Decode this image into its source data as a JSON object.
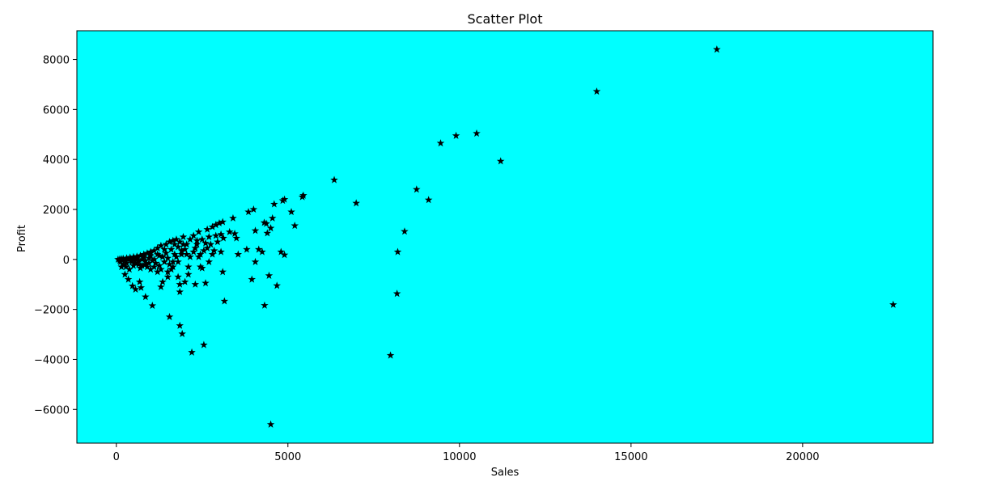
{
  "chart_data": {
    "type": "scatter",
    "title": "Scatter Plot",
    "xlabel": "Sales",
    "ylabel": "Profit",
    "xlim": [
      -1150,
      23800
    ],
    "ylim": [
      -7350,
      9150
    ],
    "xticks": [
      0,
      5000,
      10000,
      15000,
      20000
    ],
    "xtick_labels": [
      "0",
      "5000",
      "10000",
      "15000",
      "20000"
    ],
    "yticks": [
      -6000,
      -4000,
      -2000,
      0,
      2000,
      4000,
      6000,
      8000
    ],
    "ytick_labels": [
      "−6000",
      "−4000",
      "−2000",
      "0",
      "2000",
      "4000",
      "6000",
      "8000"
    ],
    "grid": false,
    "marker": "star",
    "colors": {
      "plot_background": "#00ffff",
      "marker": "#000000",
      "axes": "#000000"
    },
    "series": [
      {
        "points": [
          [
            17500,
            8400
          ],
          [
            14000,
            6720
          ],
          [
            10500,
            5040
          ],
          [
            9900,
            4950
          ],
          [
            9450,
            4650
          ],
          [
            11200,
            3930
          ],
          [
            6350,
            3180
          ],
          [
            6990,
            2250
          ],
          [
            8750,
            2800
          ],
          [
            9100,
            2380
          ],
          [
            8400,
            1120
          ],
          [
            8200,
            300
          ],
          [
            8180,
            -1370
          ],
          [
            7990,
            -3840
          ],
          [
            22640,
            -1810
          ],
          [
            4500,
            -6600
          ],
          [
            5450,
            2560
          ],
          [
            5420,
            2500
          ],
          [
            4900,
            2400
          ],
          [
            4850,
            2350
          ],
          [
            4600,
            2210
          ],
          [
            5100,
            1900
          ],
          [
            5200,
            1350
          ],
          [
            4900,
            180
          ],
          [
            4800,
            300
          ],
          [
            4680,
            -1050
          ],
          [
            4450,
            -650
          ],
          [
            4320,
            -1840
          ],
          [
            4550,
            1650
          ],
          [
            4500,
            1250
          ],
          [
            4370,
            1430
          ],
          [
            4310,
            1470
          ],
          [
            4400,
            1050
          ],
          [
            4250,
            300
          ],
          [
            4150,
            400
          ],
          [
            4050,
            -100
          ],
          [
            3950,
            -800
          ],
          [
            3850,
            1900
          ],
          [
            4000,
            2000
          ],
          [
            4050,
            1150
          ],
          [
            3800,
            400
          ],
          [
            3550,
            200
          ],
          [
            3500,
            850
          ],
          [
            3450,
            1030
          ],
          [
            3300,
            1100
          ],
          [
            3400,
            1650
          ],
          [
            3100,
            1500
          ],
          [
            3000,
            1450
          ],
          [
            2900,
            1380
          ],
          [
            2800,
            1300
          ],
          [
            3050,
            1000
          ],
          [
            3120,
            850
          ],
          [
            2950,
            700
          ],
          [
            3050,
            300
          ],
          [
            2850,
            350
          ],
          [
            3100,
            -500
          ],
          [
            3150,
            -1670
          ],
          [
            2600,
            -950
          ],
          [
            2550,
            -3420
          ],
          [
            2200,
            -3720
          ],
          [
            2300,
            -1000
          ],
          [
            2450,
            -300
          ],
          [
            2500,
            -350
          ],
          [
            2100,
            -600
          ],
          [
            2000,
            -900
          ],
          [
            1850,
            -1000
          ],
          [
            1920,
            -2980
          ],
          [
            1850,
            -2650
          ],
          [
            1550,
            -2300
          ],
          [
            1850,
            -1300
          ],
          [
            1800,
            -700
          ],
          [
            1600,
            -400
          ],
          [
            1500,
            -700
          ],
          [
            1350,
            -900
          ],
          [
            1300,
            -1100
          ],
          [
            1050,
            -1850
          ],
          [
            850,
            -1500
          ],
          [
            720,
            -1130
          ],
          [
            680,
            -900
          ],
          [
            560,
            -1200
          ],
          [
            470,
            -1060
          ],
          [
            350,
            -800
          ],
          [
            250,
            -600
          ],
          [
            150,
            -300
          ],
          [
            1200,
            -500
          ],
          [
            1000,
            -400
          ],
          [
            900,
            -300
          ],
          [
            700,
            -350
          ],
          [
            500,
            -250
          ],
          [
            300,
            -150
          ],
          [
            2650,
            1200
          ],
          [
            2700,
            900
          ],
          [
            2400,
            1100
          ],
          [
            2250,
            950
          ],
          [
            2350,
            600
          ],
          [
            2150,
            800
          ],
          [
            2050,
            600
          ],
          [
            1950,
            900
          ],
          [
            2000,
            400
          ],
          [
            2250,
            300
          ],
          [
            2500,
            800
          ],
          [
            2750,
            600
          ],
          [
            2650,
            450
          ],
          [
            2450,
            200
          ],
          [
            2700,
            -100
          ],
          [
            2400,
            100
          ],
          [
            1700,
            200
          ],
          [
            1750,
            800
          ],
          [
            1650,
            750
          ],
          [
            1550,
            700
          ],
          [
            1450,
            600
          ],
          [
            1800,
            500
          ],
          [
            1900,
            350
          ],
          [
            1750,
            100
          ],
          [
            1650,
            -100
          ],
          [
            1550,
            -200
          ],
          [
            1400,
            400
          ],
          [
            1300,
            550
          ],
          [
            1200,
            450
          ],
          [
            1100,
            350
          ],
          [
            1000,
            300
          ],
          [
            900,
            250
          ],
          [
            800,
            200
          ],
          [
            700,
            150
          ],
          [
            600,
            120
          ],
          [
            500,
            100
          ],
          [
            400,
            80
          ],
          [
            300,
            50
          ],
          [
            200,
            30
          ],
          [
            100,
            10
          ],
          [
            50,
            0
          ],
          [
            1100,
            0
          ],
          [
            950,
            50
          ],
          [
            850,
            -50
          ],
          [
            750,
            0
          ],
          [
            650,
            -50
          ],
          [
            550,
            0
          ],
          [
            450,
            -30
          ],
          [
            350,
            0
          ],
          [
            250,
            -20
          ],
          [
            150,
            20
          ],
          [
            1250,
            150
          ],
          [
            1350,
            100
          ],
          [
            1450,
            250
          ],
          [
            1500,
            50
          ],
          [
            1400,
            -100
          ],
          [
            1250,
            -250
          ],
          [
            1150,
            -150
          ],
          [
            1050,
            -50
          ],
          [
            950,
            -150
          ],
          [
            850,
            -200
          ],
          [
            750,
            -250
          ],
          [
            650,
            -200
          ],
          [
            550,
            -150
          ],
          [
            450,
            -100
          ],
          [
            380,
            -400
          ],
          [
            280,
            -300
          ],
          [
            200,
            -200
          ],
          [
            120,
            -100
          ],
          [
            1600,
            400
          ],
          [
            1700,
            600
          ],
          [
            1850,
            700
          ],
          [
            1950,
            600
          ],
          [
            2050,
            200
          ],
          [
            2150,
            100
          ],
          [
            2100,
            -300
          ],
          [
            2300,
            450
          ],
          [
            2550,
            350
          ],
          [
            2800,
            200
          ],
          [
            2900,
            950
          ],
          [
            2600,
            650
          ],
          [
            2350,
            750
          ],
          [
            1900,
            200
          ],
          [
            1800,
            -100
          ],
          [
            1650,
            -300
          ],
          [
            1200,
            200
          ],
          [
            1000,
            150
          ],
          [
            800,
            100
          ],
          [
            600,
            50
          ],
          [
            400,
            20
          ],
          [
            200,
            0
          ],
          [
            100,
            -50
          ],
          [
            1100,
            -300
          ],
          [
            1300,
            -400
          ],
          [
            1500,
            -500
          ]
        ]
      }
    ]
  }
}
